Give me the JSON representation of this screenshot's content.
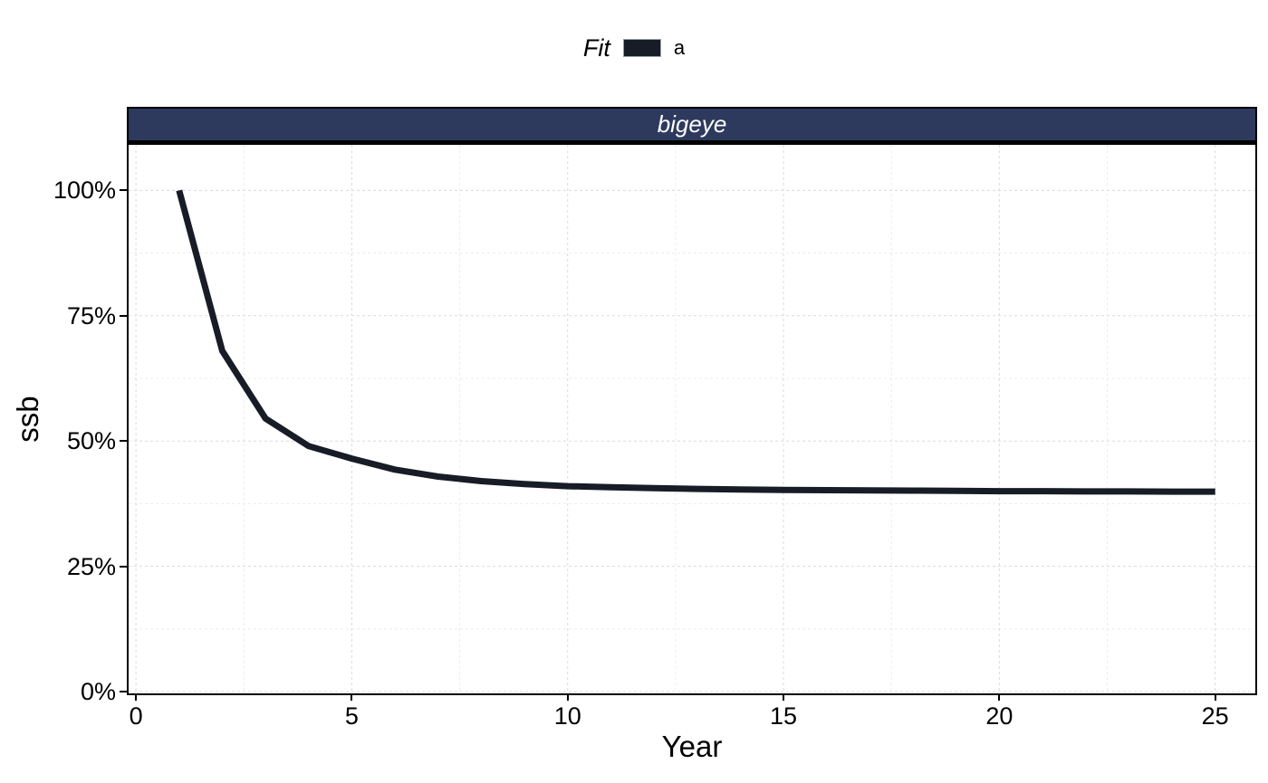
{
  "figure": {
    "background": "#ffffff"
  },
  "legend": {
    "title": "Fit",
    "position": "top",
    "items": [
      {
        "label": "a",
        "color": "#171c26"
      }
    ]
  },
  "facet": {
    "label": "bigeye",
    "bg_color": "#2e3a5d",
    "text_color": "#ffffff",
    "border_color": "#000000"
  },
  "chart_data": {
    "type": "line",
    "title": "",
    "facet_label": "bigeye",
    "xlabel": "Year",
    "ylabel": "ssb",
    "x_ticks": [
      0,
      5,
      10,
      15,
      20,
      25
    ],
    "y_ticks": [
      {
        "value": 0,
        "label": "0%"
      },
      {
        "value": 25,
        "label": "25%"
      },
      {
        "value": 50,
        "label": "50%"
      },
      {
        "value": 75,
        "label": "75%"
      },
      {
        "value": 100,
        "label": "100%"
      }
    ],
    "xlim": [
      -0.17,
      25.93
    ],
    "ylim": [
      -0.35,
      109.1
    ],
    "grid": {
      "style": "dashed",
      "major_color": "#dcdcdc",
      "minor_color": "#ececec",
      "x_minor": [
        2.5,
        7.5,
        12.5,
        17.5,
        22.5
      ],
      "y_minor": [
        12.5,
        37.5,
        62.5,
        87.5
      ]
    },
    "legend_position": "top",
    "series": [
      {
        "name": "a",
        "color": "#171c26",
        "linewidth": 7,
        "x": [
          1,
          2,
          3,
          4,
          5,
          6,
          7,
          8,
          9,
          10,
          11,
          12,
          13,
          14,
          15,
          16,
          17,
          18,
          19,
          20,
          21,
          22,
          23,
          24,
          25
        ],
        "y": [
          100,
          68,
          54.5,
          49,
          46.5,
          44.3,
          42.9,
          42,
          41.4,
          41,
          40.8,
          40.6,
          40.45,
          40.35,
          40.25,
          40.2,
          40.15,
          40.1,
          40.05,
          40,
          40,
          39.95,
          39.95,
          39.9,
          39.9
        ]
      }
    ]
  }
}
